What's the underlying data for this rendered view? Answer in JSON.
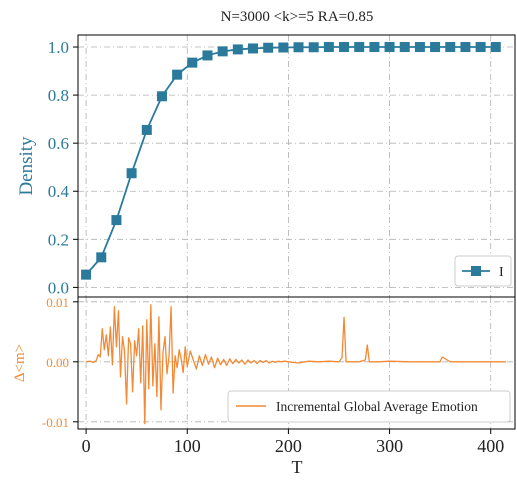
{
  "chart_data": [
    {
      "type": "line",
      "title": "N=3000  <k>=5  RA=0.85",
      "ylabel": "Density",
      "xlabel": "",
      "xlim": [
        -8,
        424
      ],
      "ylim": [
        -0.04,
        1.05
      ],
      "yticks": [
        0.0,
        0.2,
        0.4,
        0.6,
        0.8,
        1.0
      ],
      "ytick_labels": [
        "0.0",
        "0.2",
        "0.4",
        "0.6",
        "0.8",
        "1.0"
      ],
      "grid": true,
      "legend": "bottom-right",
      "color": "#2b7a9b",
      "series": [
        {
          "name": "I",
          "x": [
            0,
            15,
            30,
            45,
            60,
            75,
            90,
            105,
            120,
            135,
            150,
            165,
            180,
            195,
            210,
            225,
            240,
            255,
            270,
            285,
            300,
            315,
            330,
            345,
            360,
            375,
            390,
            405
          ],
          "y": [
            0.053,
            0.125,
            0.28,
            0.475,
            0.655,
            0.795,
            0.885,
            0.935,
            0.965,
            0.982,
            0.99,
            0.994,
            0.997,
            0.998,
            0.999,
            0.999,
            1.0,
            1.0,
            1.0,
            1.0,
            1.0,
            1.0,
            1.0,
            1.0,
            1.0,
            1.0,
            1.0,
            1.0
          ]
        }
      ]
    },
    {
      "type": "line",
      "title": "",
      "ylabel": "Δ<m>",
      "xlabel": "T",
      "xlim": [
        -8,
        424
      ],
      "ylim": [
        -0.0112,
        0.0108
      ],
      "yticks": [
        -0.01,
        0.0,
        0.01
      ],
      "ytick_labels": [
        "-0.01",
        "0.00",
        "0.01"
      ],
      "xticks": [
        0,
        100,
        200,
        300,
        400
      ],
      "xtick_labels": [
        "0",
        "100",
        "200",
        "300",
        "400"
      ],
      "grid": true,
      "legend": "bottom-right",
      "color": "#f28a35",
      "series": [
        {
          "name": "Incremental Global Average Emotion",
          "x": [
            0,
            4,
            7,
            10,
            12,
            14,
            16,
            18,
            20,
            22,
            24,
            26,
            28,
            30,
            32,
            34,
            36,
            38,
            40,
            42,
            44,
            46,
            48,
            50,
            52,
            54,
            56,
            58,
            60,
            62,
            64,
            66,
            68,
            70,
            72,
            74,
            76,
            78,
            80,
            82,
            84,
            86,
            88,
            90,
            92,
            94,
            96,
            98,
            100,
            103,
            106,
            109,
            112,
            115,
            118,
            121,
            124,
            127,
            130,
            133,
            136,
            139,
            142,
            145,
            148,
            151,
            154,
            157,
            160,
            163,
            166,
            169,
            172,
            175,
            178,
            181,
            184,
            187,
            190,
            193,
            196,
            200,
            210,
            220,
            230,
            240,
            250,
            253,
            255,
            257,
            260,
            270,
            276,
            278,
            280,
            290,
            300,
            320,
            340,
            350,
            352,
            360,
            380,
            400,
            415
          ],
          "y": [
            0.0,
            0.0001,
            -0.0001,
            0.0002,
            0.0012,
            0.0008,
            0.0055,
            0.002,
            0.0045,
            0.001,
            0.0058,
            -0.0005,
            0.0092,
            0.0025,
            0.0085,
            -0.0025,
            0.0042,
            0.0018,
            -0.007,
            0.004,
            0.003,
            -0.005,
            0.0035,
            0.001,
            0.0055,
            -0.0035,
            0.006,
            -0.0103,
            0.007,
            -0.0045,
            0.0095,
            -0.004,
            0.003,
            -0.0058,
            0.0075,
            -0.008,
            0.0015,
            0.0042,
            -0.002,
            0.001,
            0.0092,
            -0.0052,
            0.001,
            -0.001,
            0.002,
            0.0005,
            -0.0018,
            0.0025,
            -0.0008,
            0.0018,
            0.0003,
            -0.0012,
            0.001,
            -0.0006,
            0.0012,
            -0.0004,
            0.0008,
            -0.001,
            0.0006,
            -0.0005,
            0.0004,
            -0.0006,
            0.0005,
            -0.0003,
            0.0004,
            -0.0002,
            0.0003,
            -0.0004,
            0.0003,
            -0.0002,
            0.0002,
            -0.0003,
            0.0002,
            -0.0001,
            0.0002,
            -0.0002,
            0.0001,
            -0.0001,
            0.0001,
            0.0,
            0.0001,
            0.0,
            -0.0002,
            0.0001,
            0.0,
            0.0001,
            0.0,
            0.0007,
            0.0074,
            0.0,
            0.0,
            0.0,
            0.0003,
            0.0028,
            0.0,
            0.0,
            0.0001,
            0.0,
            0.0,
            0.0,
            0.0008,
            0.0,
            0.0,
            0.0,
            0.0
          ]
        }
      ]
    }
  ]
}
